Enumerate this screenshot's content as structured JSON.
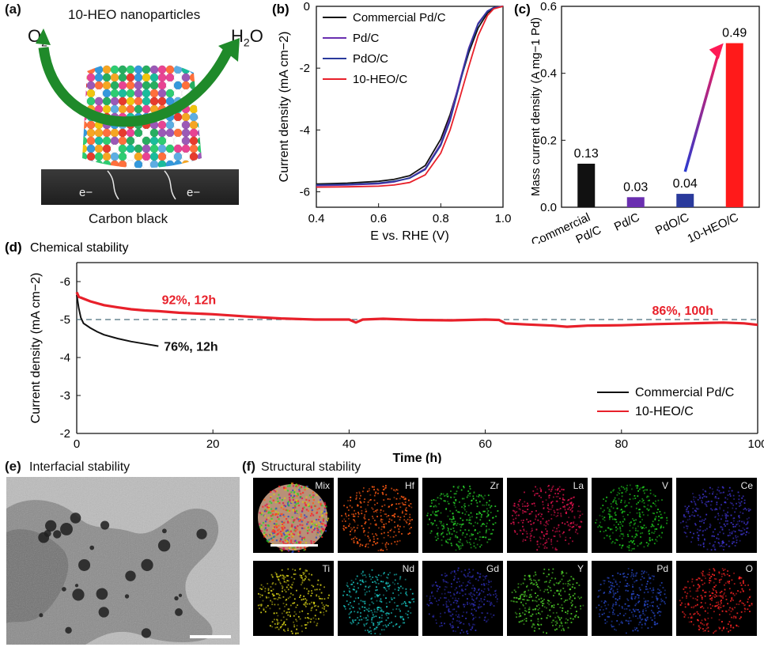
{
  "panel_a": {
    "label": "(a)",
    "title": "10-HEO nanoparticles",
    "reactant": "O",
    "reactant_sub": "2",
    "product_pre": "H",
    "product_sub": "2",
    "product_post": "O",
    "electron": "e−",
    "support": "Carbon black"
  },
  "panel_e": {
    "label": "(e)",
    "title": "Interfacial stability"
  },
  "panel_f": {
    "label": "(f)",
    "title": "Structural stability",
    "maps": [
      {
        "name": "Mix",
        "color": "#c8a070"
      },
      {
        "name": "Hf",
        "color": "#ff5a14"
      },
      {
        "name": "Zr",
        "color": "#28d22a"
      },
      {
        "name": "La",
        "color": "#e0124e"
      },
      {
        "name": "V",
        "color": "#1ecc1e"
      },
      {
        "name": "Ce",
        "color": "#3c32c8"
      },
      {
        "name": "Ti",
        "color": "#d2cc16"
      },
      {
        "name": "Nd",
        "color": "#18c4c0"
      },
      {
        "name": "Gd",
        "color": "#2e2eb4"
      },
      {
        "name": "Y",
        "color": "#50d22a"
      },
      {
        "name": "Pd",
        "color": "#2848c8"
      },
      {
        "name": "O",
        "color": "#ff2424"
      }
    ]
  },
  "chart_data": [
    {
      "panel": "(b)",
      "type": "line",
      "xlabel": "E vs. RHE (V)",
      "ylabel": "Current density (mA cm−2)",
      "xlim": [
        0.4,
        1.0
      ],
      "ylim": [
        -6.5,
        0
      ],
      "xticks": [
        "0.4",
        "0.6",
        "0.8",
        "1.0"
      ],
      "yticks": [
        "0",
        "-2",
        "-4",
        "-6"
      ],
      "legend": "top-left",
      "series": [
        {
          "name": "Commercial Pd/C",
          "color": "#111111",
          "x": [
            0.4,
            0.5,
            0.6,
            0.65,
            0.7,
            0.75,
            0.8,
            0.83,
            0.86,
            0.89,
            0.92,
            0.95,
            0.97,
            1.0
          ],
          "y": [
            -5.75,
            -5.72,
            -5.66,
            -5.6,
            -5.48,
            -5.15,
            -4.3,
            -3.5,
            -2.5,
            -1.5,
            -0.7,
            -0.22,
            -0.06,
            0
          ]
        },
        {
          "name": "Pd/C",
          "color": "#6a2fb0",
          "x": [
            0.4,
            0.5,
            0.6,
            0.65,
            0.7,
            0.75,
            0.8,
            0.83,
            0.86,
            0.89,
            0.92,
            0.95,
            0.97,
            1.0
          ],
          "y": [
            -5.8,
            -5.78,
            -5.74,
            -5.68,
            -5.55,
            -5.25,
            -4.45,
            -3.6,
            -2.45,
            -1.35,
            -0.55,
            -0.15,
            -0.04,
            0
          ]
        },
        {
          "name": "PdO/C",
          "color": "#2a3a9c",
          "x": [
            0.4,
            0.5,
            0.6,
            0.65,
            0.7,
            0.75,
            0.8,
            0.83,
            0.86,
            0.89,
            0.92,
            0.95,
            0.97,
            1.0
          ],
          "y": [
            -5.78,
            -5.76,
            -5.72,
            -5.66,
            -5.56,
            -5.28,
            -4.5,
            -3.7,
            -2.55,
            -1.4,
            -0.58,
            -0.16,
            -0.04,
            0
          ]
        },
        {
          "name": "10-HEO/C",
          "color": "#e8202a",
          "x": [
            0.4,
            0.5,
            0.6,
            0.65,
            0.7,
            0.75,
            0.8,
            0.83,
            0.86,
            0.89,
            0.92,
            0.95,
            0.97,
            1.0
          ],
          "y": [
            -5.85,
            -5.84,
            -5.82,
            -5.78,
            -5.7,
            -5.45,
            -4.75,
            -4.0,
            -3.0,
            -1.95,
            -0.95,
            -0.3,
            -0.08,
            0
          ]
        }
      ]
    },
    {
      "panel": "(c)",
      "type": "bar",
      "ylabel": "Mass current density (A mg−1 Pd)",
      "ylim": [
        0,
        0.6
      ],
      "yticks": [
        "0.0",
        "0.2",
        "0.4",
        "0.6"
      ],
      "categories": [
        {
          "top": "Commercial",
          "bottom": "Pd/C"
        },
        {
          "top": "",
          "bottom": "Pd/C"
        },
        {
          "top": "",
          "bottom": "PdO/C"
        },
        {
          "top": "",
          "bottom": "10-HEO/C"
        }
      ],
      "values": [
        0.13,
        0.03,
        0.04,
        0.49
      ],
      "value_labels": [
        "0.13",
        "0.03",
        "0.04",
        "0.49"
      ],
      "colors": [
        "#111111",
        "#6a2fb0",
        "#2a3a9c",
        "#ff1a1a"
      ]
    },
    {
      "panel": "(d)",
      "type": "line",
      "title": "Chemical stability",
      "xlabel": "Time (h)",
      "ylabel": "Current density (mA cm−2)",
      "xlim": [
        0,
        100
      ],
      "ylim": [
        -2,
        -6.5
      ],
      "xticks": [
        "0",
        "20",
        "40",
        "60",
        "80",
        "100"
      ],
      "yticks": [
        "-2",
        "-3",
        "-4",
        "-5",
        "-6"
      ],
      "reference_line": -5.0,
      "legend": "bottom-right",
      "annotations": [
        "92%, 12h",
        "86%, 100h",
        "76%, 12h"
      ],
      "series": [
        {
          "name": "Commercial Pd/C",
          "color": "#111111",
          "x": [
            0,
            0.3,
            0.6,
            1,
            2,
            3,
            4,
            6,
            8,
            10,
            12
          ],
          "y": [
            -5.65,
            -5.3,
            -5.05,
            -4.9,
            -4.78,
            -4.68,
            -4.6,
            -4.5,
            -4.42,
            -4.36,
            -4.3
          ]
        },
        {
          "name": "10-HEO/C",
          "color": "#e8202a",
          "x": [
            0,
            0.3,
            1,
            2,
            4,
            6,
            8,
            10,
            12,
            15,
            20,
            25,
            30,
            35,
            40,
            41,
            42,
            45,
            50,
            55,
            60,
            62,
            63,
            66,
            70,
            72,
            75,
            80,
            85,
            90,
            95,
            98,
            100
          ],
          "y": [
            -5.72,
            -5.6,
            -5.55,
            -5.48,
            -5.38,
            -5.32,
            -5.27,
            -5.24,
            -5.22,
            -5.18,
            -5.14,
            -5.08,
            -5.03,
            -5.0,
            -5.0,
            -4.92,
            -5.0,
            -5.02,
            -4.99,
            -4.98,
            -5.0,
            -4.99,
            -4.9,
            -4.87,
            -4.84,
            -4.81,
            -4.84,
            -4.85,
            -4.88,
            -4.9,
            -4.92,
            -4.9,
            -4.86
          ]
        }
      ]
    }
  ]
}
